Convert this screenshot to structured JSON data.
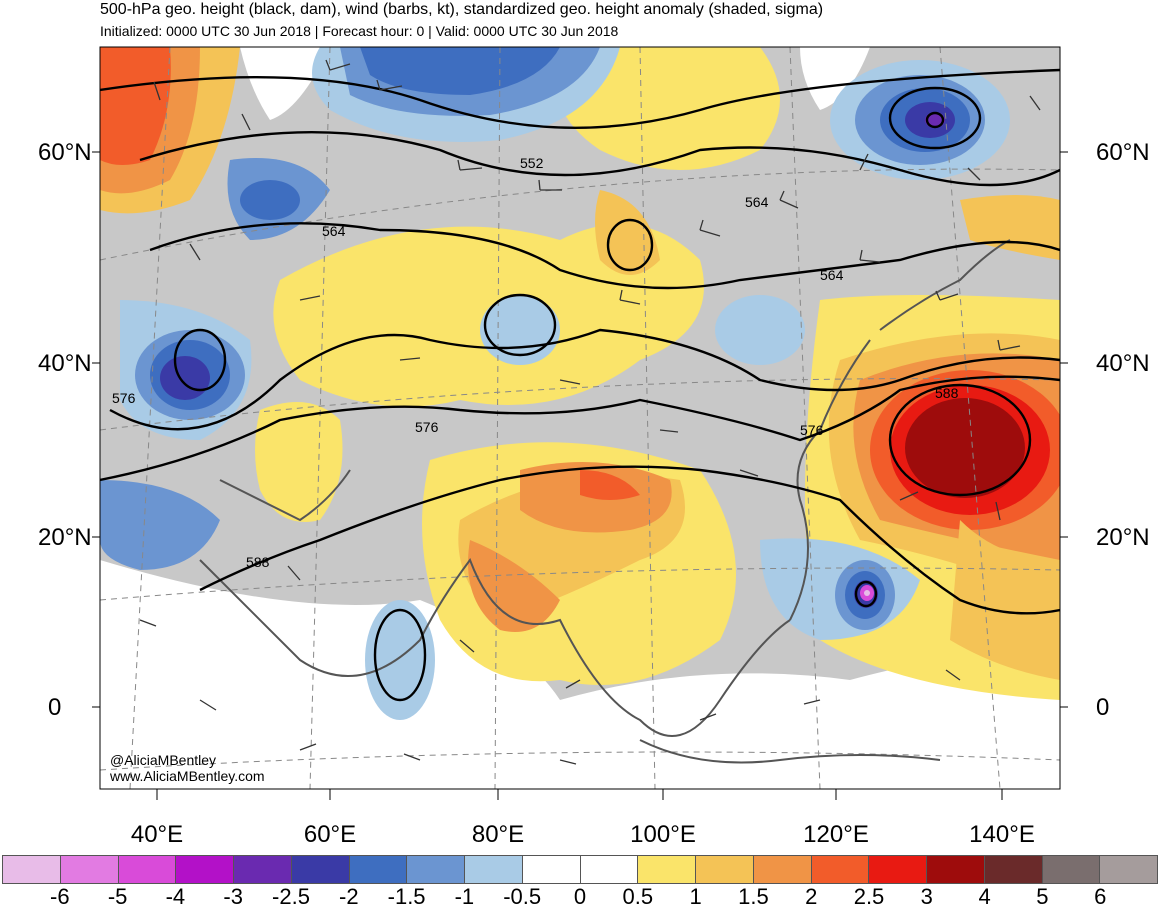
{
  "header": {
    "title": "500-hPa geo. height (black, dam), wind (barbs, kt), standardized geo. height anomaly (shaded, sigma)",
    "subtitle": "Initialized: 0000 UTC 30 Jun 2018 | Forecast hour: 0 | Valid: 0000 UTC 30 Jun 2018"
  },
  "map": {
    "lat_labels": [
      "60°N",
      "40°N",
      "20°N",
      "0"
    ],
    "lon_labels": [
      "40°E",
      "60°E",
      "80°E",
      "100°E",
      "120°E",
      "140°E"
    ],
    "contour_labels": [
      "552",
      "564",
      "564",
      "564",
      "576",
      "576",
      "576",
      "588",
      "588"
    ],
    "credit_handle": "@AliciaMBentley",
    "credit_url": "www.AliciaMBentley.com"
  },
  "colorbar": {
    "labels": [
      "-6",
      "-5",
      "-4",
      "-3",
      "-2.5",
      "-2",
      "-1.5",
      "-1",
      "-0.5",
      "0",
      "0.5",
      "1",
      "1.5",
      "2",
      "2.5",
      "3",
      "4",
      "5",
      "6"
    ],
    "colors": [
      "#e8bce8",
      "#e27be2",
      "#d94bd9",
      "#b311c8",
      "#6a2ab0",
      "#3a3aa6",
      "#3e6ec0",
      "#6b95d1",
      "#a9cbe6",
      "#ffffff",
      "#ffffff",
      "#fae46a",
      "#f4c356",
      "#f09446",
      "#f25c2a",
      "#e81a12",
      "#9e0c0c",
      "#6a2a2a",
      "#7a6e6e",
      "#a59c9c"
    ]
  }
}
